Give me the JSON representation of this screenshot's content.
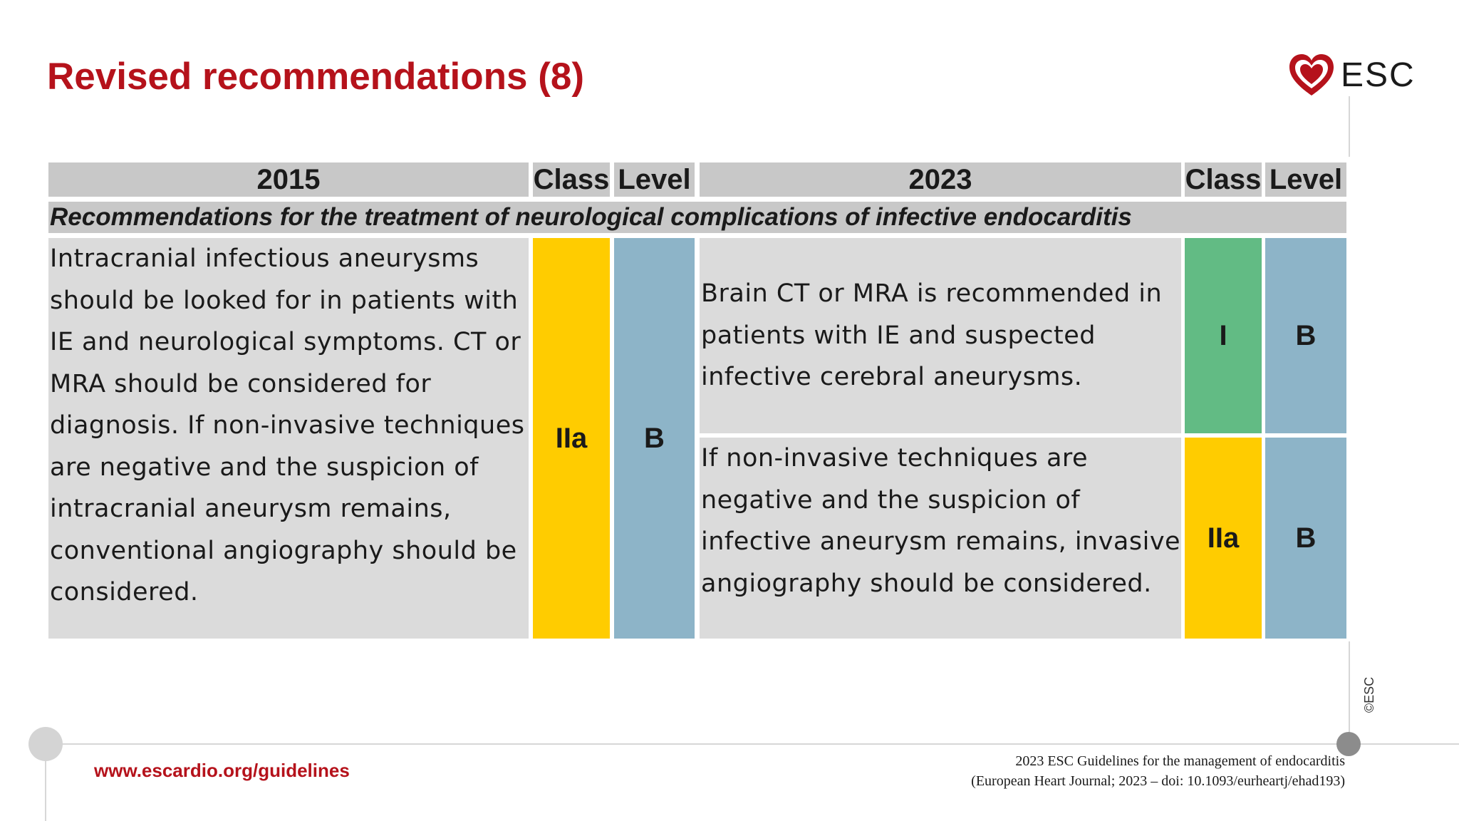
{
  "slide": {
    "title": "Revised recommendations (8)",
    "logo_text": "ESC",
    "logo_icon": "heart-logo-icon",
    "accent_color": "#b5121b"
  },
  "table": {
    "headers": {
      "col_2015": "2015",
      "class_2015": "Class",
      "level_2015": "Level",
      "col_2023": "2023",
      "class_2023": "Class",
      "level_2023": "Level"
    },
    "section_title": "Recommendations for the treatment of neurological complications of infective endocarditis",
    "rec_2015": {
      "text": "Intracranial infectious aneurysms should be looked for in patients with IE and neurological symptoms. CT or MRA should be considered for diagnosis. If non-invasive techniques are negative and the suspicion of intracranial aneurysm remains, conventional angiography should be considered.",
      "class": "IIa",
      "level": "B"
    },
    "rec_2023": [
      {
        "text": "Brain CT or MRA is recommended in patients with IE and suspected infective cerebral aneurysms.",
        "class": "I",
        "level": "B"
      },
      {
        "text": "If non-invasive techniques are negative and the suspicion of infective aneurysm remains, invasive angiography should be considered.",
        "class": "IIa",
        "level": "B"
      }
    ],
    "colors": {
      "class_I": "#62bb84",
      "class_IIa": "#ffcc00",
      "level_B": "#8db4c8",
      "header_bg": "#c8c8c8",
      "body_bg": "#dbdbdb"
    }
  },
  "footer": {
    "url": "www.escardio.org/guidelines",
    "citation_line1": "2023 ESC Guidelines for the management of endocarditis",
    "citation_line2": "(European Heart Journal; 2023 – doi: 10.1093/eurheartj/ehad193)",
    "copyright": "©ESC"
  }
}
